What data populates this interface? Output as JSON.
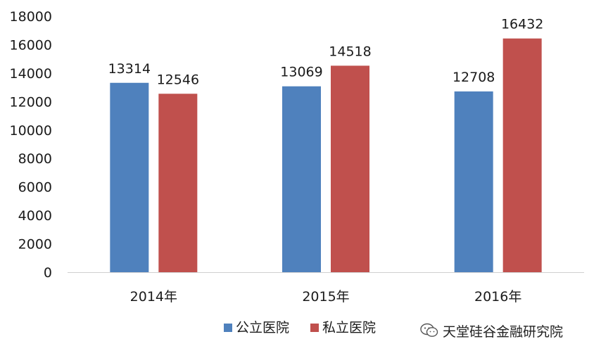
{
  "chart_data": {
    "type": "bar",
    "categories": [
      "2014年",
      "2015年",
      "2016年"
    ],
    "series": [
      {
        "name": "公立医院",
        "color": "#4f81bd",
        "values": [
          13314,
          13069,
          12708
        ]
      },
      {
        "name": "私立医院",
        "color": "#c0504d",
        "values": [
          12546,
          14518,
          16432
        ]
      }
    ],
    "ylim": [
      0,
      18000
    ],
    "yticks": [
      0,
      2000,
      4000,
      6000,
      8000,
      10000,
      12000,
      14000,
      16000,
      18000
    ],
    "grid": false,
    "legend_position": "bottom",
    "data_labels": true
  },
  "watermark": {
    "text": "天堂硅谷金融研究院",
    "icon": "wechat-bubble-icon"
  }
}
